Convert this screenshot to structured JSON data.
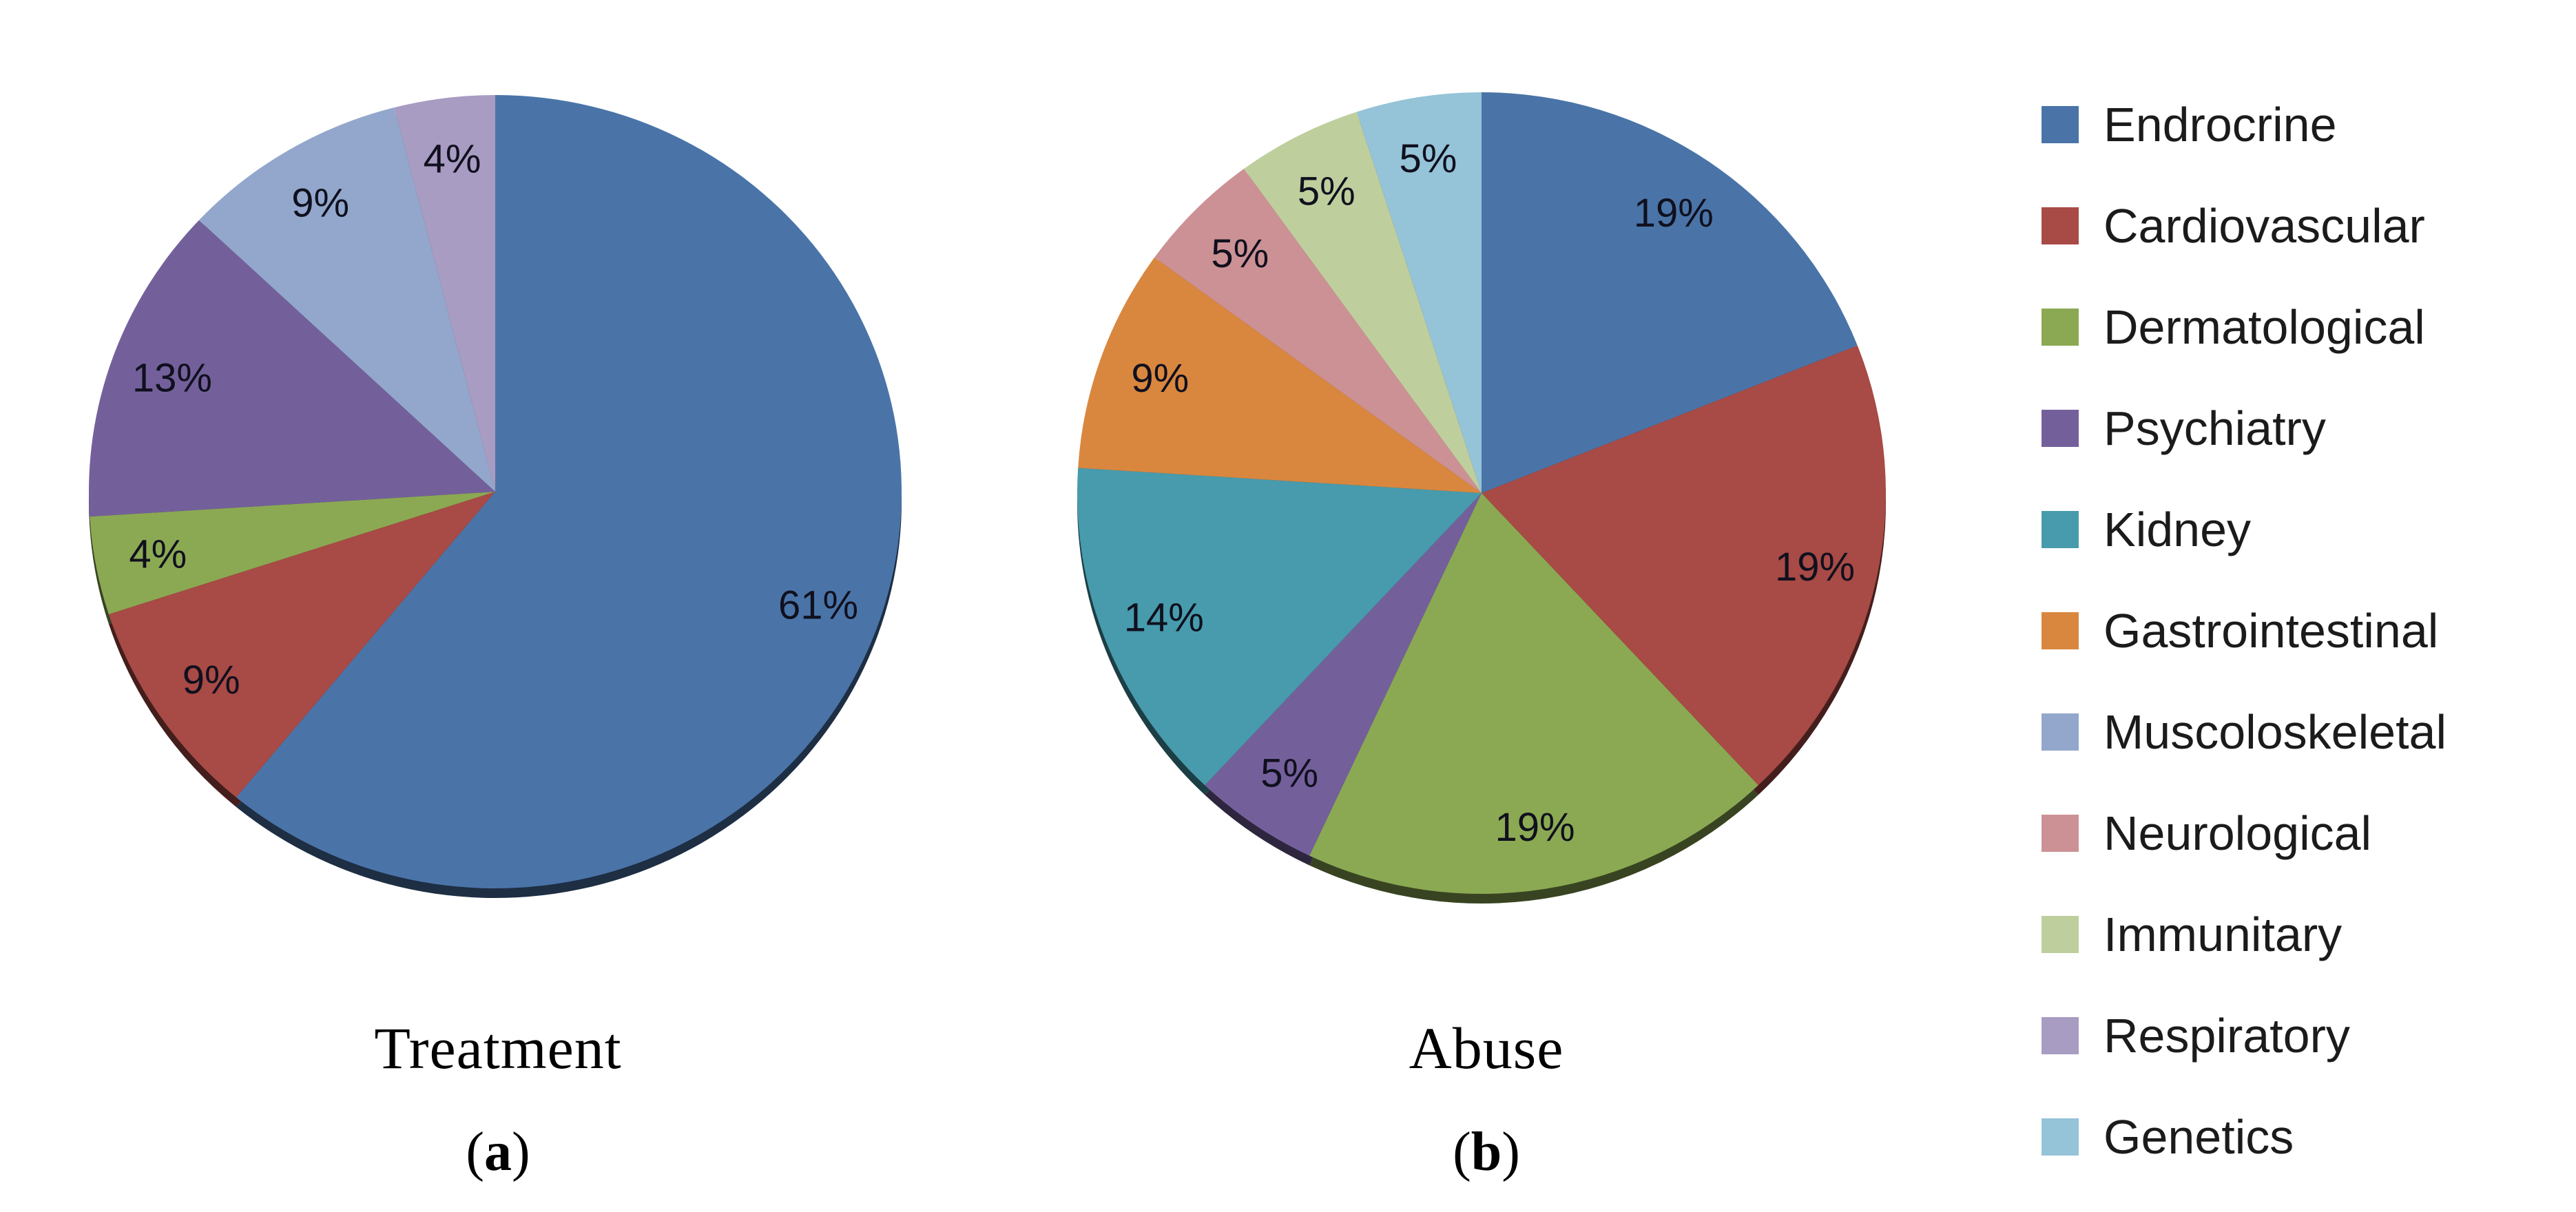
{
  "figure": {
    "background": "#ffffff",
    "label_text_color": "#10101e",
    "legend_text_color": "#1b1b1b"
  },
  "chart_data": [
    {
      "type": "pie",
      "panel": "a",
      "title": "Treatment",
      "labels_show": "percent",
      "direction": "clockwise",
      "start_angle_deg": 0,
      "slices": [
        {
          "label": "Endrocrine",
          "value": 61,
          "pct_label": "61%",
          "color": "#4a74a8"
        },
        {
          "label": "Cardiovascular",
          "value": 9,
          "pct_label": "9%",
          "color": "#a84a45"
        },
        {
          "label": "Dermatological",
          "value": 4,
          "pct_label": "4%",
          "color": "#8ba953"
        },
        {
          "label": "Psychiatry",
          "value": 13,
          "pct_label": "13%",
          "color": "#73609b"
        },
        {
          "label": "Muscoloskeletal",
          "value": 9,
          "pct_label": "9%",
          "color": "#93a7cc"
        },
        {
          "label": "Respiratory",
          "value": 4,
          "pct_label": "4%",
          "color": "#a89cc2"
        }
      ]
    },
    {
      "type": "pie",
      "panel": "b",
      "title": "Abuse",
      "labels_show": "percent",
      "direction": "clockwise",
      "start_angle_deg": 0,
      "slices": [
        {
          "label": "Endrocrine",
          "value": 19,
          "pct_label": "19%",
          "color": "#4a74a8"
        },
        {
          "label": "Cardiovascular",
          "value": 19,
          "pct_label": "19%",
          "color": "#a84a45"
        },
        {
          "label": "Dermatological",
          "value": 19,
          "pct_label": "19%",
          "color": "#8ba953"
        },
        {
          "label": "Psychiatry",
          "value": 5,
          "pct_label": "5%",
          "color": "#73609b"
        },
        {
          "label": "Kidney",
          "value": 14,
          "pct_label": "14%",
          "color": "#479bac"
        },
        {
          "label": "Gastrointestinal",
          "value": 9,
          "pct_label": "9%",
          "color": "#d9873f"
        },
        {
          "label": "Neurological",
          "value": 5,
          "pct_label": "5%",
          "color": "#cc9195"
        },
        {
          "label": "Immunitary",
          "value": 5,
          "pct_label": "5%",
          "color": "#bfce9d"
        },
        {
          "label": "Genetics",
          "value": 5,
          "pct_label": "5%",
          "color": "#95c3d7"
        }
      ]
    }
  ],
  "legend": {
    "position": "right",
    "items": [
      {
        "label": "Endrocrine",
        "color": "#4a74a8"
      },
      {
        "label": "Cardiovascular",
        "color": "#a84a45"
      },
      {
        "label": "Dermatological",
        "color": "#8ba953"
      },
      {
        "label": "Psychiatry",
        "color": "#73609b"
      },
      {
        "label": "Kidney",
        "color": "#479bac"
      },
      {
        "label": "Gastrointestinal",
        "color": "#d9873f"
      },
      {
        "label": "Muscoloskeletal",
        "color": "#93a7cc"
      },
      {
        "label": "Neurological",
        "color": "#cc9195"
      },
      {
        "label": "Immunitary",
        "color": "#bfce9d"
      },
      {
        "label": "Respiratory",
        "color": "#a89cc2"
      },
      {
        "label": "Genetics",
        "color": "#95c3d7"
      }
    ]
  },
  "captions": {
    "a": {
      "open": "(",
      "letter": "a",
      "close": ")"
    },
    "b": {
      "open": "(",
      "letter": "b",
      "close": ")"
    }
  }
}
